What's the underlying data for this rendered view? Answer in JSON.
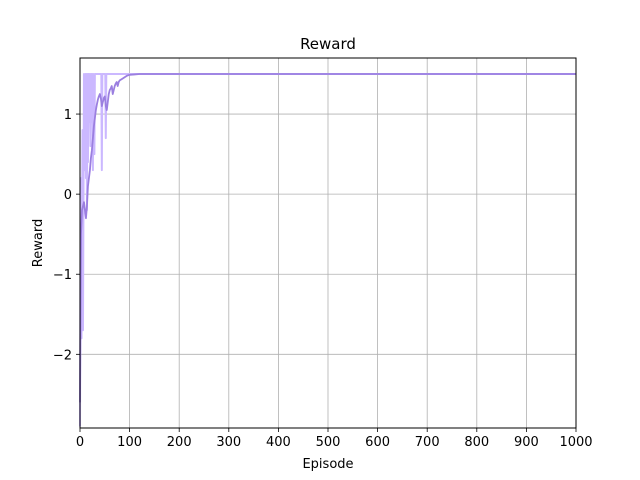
{
  "chart_data": {
    "type": "line",
    "title": "Reward",
    "xlabel": "Episode",
    "ylabel": "Reward",
    "xlim": [
      0,
      1000
    ],
    "ylim": [
      -2.92,
      1.7
    ],
    "grid": true,
    "x_ticks": [
      0,
      100,
      200,
      300,
      400,
      500,
      600,
      700,
      800,
      900,
      1000
    ],
    "y_ticks": [
      -2,
      -1,
      0,
      1
    ],
    "y_tick_labels": [
      "−2",
      "−1",
      "0",
      "1"
    ],
    "colors": {
      "raw": "#cbb8ff",
      "smoothed": "#9b7fe0",
      "grid": "#b0b0b0",
      "axis": "#000000"
    },
    "series": [
      {
        "role": "raw",
        "x": [
          0,
          1,
          2,
          3,
          4,
          5,
          6,
          7,
          8,
          9,
          10,
          11,
          12,
          13,
          14,
          15,
          16,
          17,
          18,
          19,
          20,
          21,
          22,
          23,
          24,
          25,
          26,
          27,
          28,
          29,
          30,
          31,
          32,
          33,
          34,
          35,
          36,
          37,
          38,
          39,
          40,
          41,
          42,
          43,
          44,
          45,
          46,
          47,
          48,
          49,
          50,
          51,
          52,
          53,
          54,
          55,
          56,
          57,
          58,
          59,
          60,
          61,
          62,
          63,
          64,
          65,
          66,
          67,
          68,
          69,
          70,
          71,
          72,
          73,
          74,
          75,
          76,
          77,
          78,
          79,
          80,
          81,
          82,
          83,
          84,
          85,
          86,
          87,
          88,
          89,
          90,
          100,
          120,
          150,
          200,
          300,
          400,
          500,
          600,
          700,
          800,
          900,
          1000
        ],
        "y": [
          -2.9,
          -0.8,
          0.2,
          -1.8,
          -0.5,
          0.8,
          -1.7,
          -0.1,
          1.5,
          0.5,
          0.3,
          1.5,
          0.2,
          1.5,
          -0.2,
          1.5,
          0.4,
          1.5,
          1.5,
          0.9,
          1.5,
          0.6,
          1.5,
          1.5,
          0.9,
          1.5,
          0.3,
          1.5,
          0.9,
          0.5,
          1.5,
          1.5,
          1.5,
          1.5,
          1.5,
          1.5,
          1.5,
          1.5,
          1.5,
          1.5,
          1.5,
          1.5,
          1.5,
          1.5,
          0.3,
          1.5,
          1.5,
          1.5,
          1.5,
          1.5,
          1.5,
          1.5,
          0.7,
          1.5,
          1.5,
          1.5,
          1.5,
          1.5,
          1.5,
          1.5,
          1.5,
          1.5,
          1.5,
          1.5,
          1.5,
          1.5,
          1.5,
          1.5,
          1.5,
          1.5,
          1.5,
          1.5,
          1.5,
          1.5,
          1.5,
          1.5,
          1.5,
          1.5,
          1.5,
          1.5,
          1.5,
          1.5,
          1.5,
          1.5,
          1.5,
          1.5,
          1.5,
          1.5,
          1.5,
          1.5,
          1.5,
          1.5,
          1.5,
          1.5,
          1.5,
          1.5,
          1.5,
          1.5,
          1.5,
          1.5,
          1.5,
          1.5,
          1.5
        ]
      },
      {
        "role": "smoothed",
        "x": [
          0,
          2,
          4,
          6,
          8,
          10,
          12,
          14,
          16,
          18,
          20,
          22,
          24,
          26,
          28,
          30,
          32,
          34,
          36,
          38,
          40,
          42,
          44,
          46,
          48,
          50,
          52,
          54,
          56,
          58,
          60,
          62,
          64,
          66,
          68,
          70,
          72,
          74,
          76,
          78,
          80,
          85,
          90,
          95,
          100,
          110,
          120,
          140,
          160,
          200,
          300,
          400,
          500,
          600,
          700,
          800,
          900,
          1000
        ],
        "y": [
          -2.6,
          -0.5,
          -0.2,
          -0.15,
          -0.1,
          -0.2,
          -0.3,
          -0.15,
          0.1,
          0.2,
          0.3,
          0.45,
          0.55,
          0.7,
          0.85,
          0.95,
          1.05,
          1.12,
          1.18,
          1.22,
          1.25,
          1.2,
          1.1,
          1.15,
          1.2,
          1.22,
          1.1,
          1.05,
          1.15,
          1.25,
          1.3,
          1.32,
          1.35,
          1.25,
          1.3,
          1.35,
          1.38,
          1.4,
          1.35,
          1.4,
          1.42,
          1.44,
          1.46,
          1.48,
          1.49,
          1.495,
          1.5,
          1.5,
          1.5,
          1.5,
          1.5,
          1.5,
          1.5,
          1.5,
          1.5,
          1.5,
          1.5,
          1.5
        ]
      }
    ]
  }
}
